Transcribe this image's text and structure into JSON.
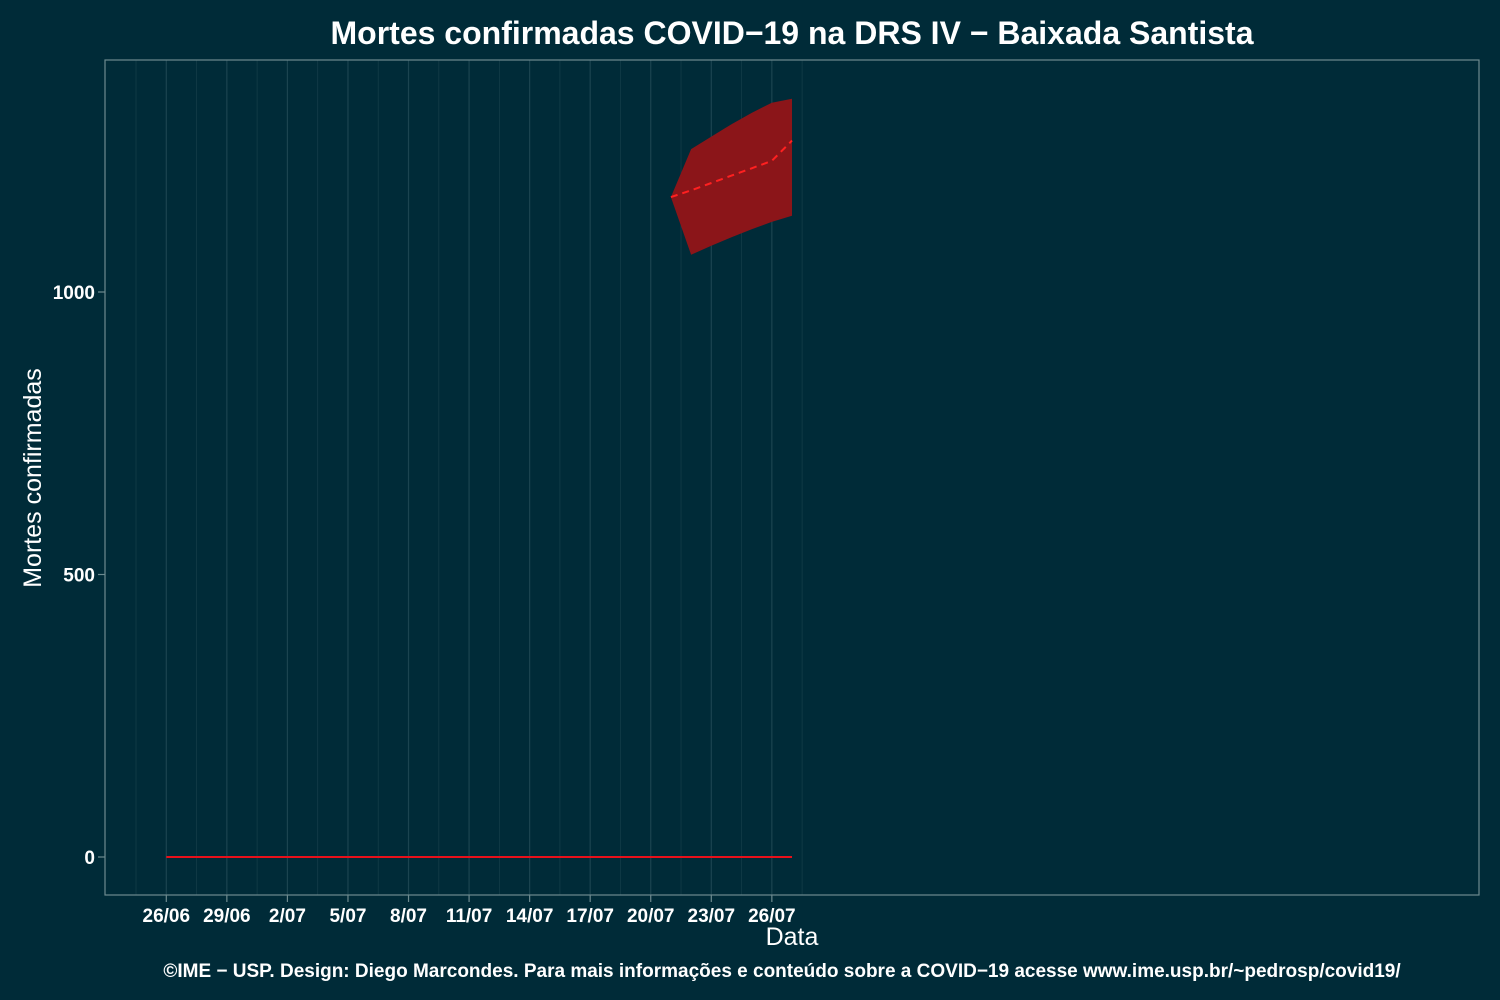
{
  "chart_data": {
    "type": "line",
    "title": "Mortes confirmadas COVID−19 na DRS IV − Baixada Santista",
    "xlabel": "Data",
    "ylabel": "Mortes confirmadas",
    "x_ticks": [
      "26/06",
      "29/06",
      "2/07",
      "5/07",
      "8/07",
      "11/07",
      "14/07",
      "17/07",
      "20/07",
      "23/07",
      "26/07"
    ],
    "y_ticks": [
      0,
      500,
      1000
    ],
    "ylim": [
      -65,
      1400
    ],
    "xlim": [
      "24/06",
      "28/07"
    ],
    "grid": true,
    "series": [
      {
        "style": "solid",
        "color": "#e8101a",
        "points": [
          {
            "x": "26/06",
            "y": 0
          },
          {
            "x": "27/07",
            "y": 0
          }
        ]
      },
      {
        "style": "dashed",
        "color": "#ff2020",
        "points": [
          {
            "x": "21/07",
            "y": 1168
          },
          {
            "x": "22/07",
            "y": 1180
          },
          {
            "x": "23/07",
            "y": 1193
          },
          {
            "x": "24/07",
            "y": 1206
          },
          {
            "x": "25/07",
            "y": 1219
          },
          {
            "x": "26/07",
            "y": 1232
          },
          {
            "x": "27/07",
            "y": 1268
          }
        ]
      }
    ],
    "band": {
      "color": "#8b1519",
      "upper": [
        {
          "x": "21/07",
          "y": 1168
        },
        {
          "x": "22/07",
          "y": 1253
        },
        {
          "x": "23/07",
          "y": 1275
        },
        {
          "x": "24/07",
          "y": 1297
        },
        {
          "x": "25/07",
          "y": 1317
        },
        {
          "x": "26/07",
          "y": 1335
        },
        {
          "x": "27/07",
          "y": 1342
        }
      ],
      "lower": [
        {
          "x": "21/07",
          "y": 1168
        },
        {
          "x": "22/07",
          "y": 1066
        },
        {
          "x": "23/07",
          "y": 1082
        },
        {
          "x": "24/07",
          "y": 1097
        },
        {
          "x": "25/07",
          "y": 1111
        },
        {
          "x": "26/07",
          "y": 1124
        },
        {
          "x": "27/07",
          "y": 1135
        }
      ]
    },
    "caption": "©IME − USP. Design: Diego Marcondes. Para mais informações e conteúdo sobre a COVID−19 acesse www.ime.usp.br/~pedrosp/covid19/"
  },
  "colors": {
    "background": "#002b38",
    "panel_border": "#6d8a8f",
    "grid": "#1b4450",
    "text": "#ffffff"
  }
}
